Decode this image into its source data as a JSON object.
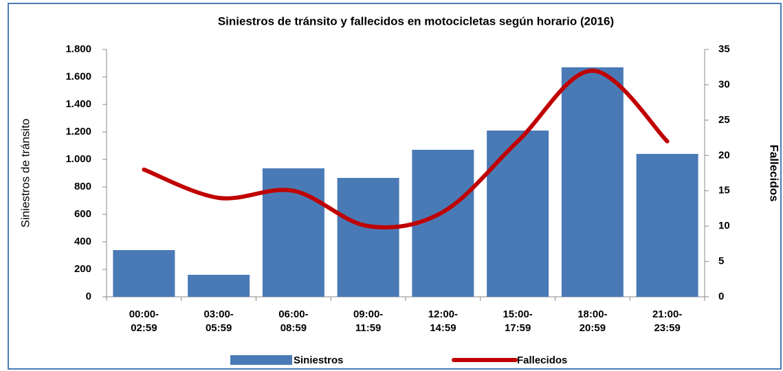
{
  "chart_data": {
    "type": "bar-line",
    "title": "Siniestros de tránsito y fallecidos en motocicletas según horario (2016)",
    "ylabel": "Siniestros de tránsito",
    "y2label": "Fallecidos",
    "categories": [
      "00:00-\n02:59",
      "03:00-\n05:59",
      "06:00-\n08:59",
      "09:00-\n11:59",
      "12:00-\n14:59",
      "15:00-\n17:59",
      "18:00-\n20:59",
      "21:00-\n23:59"
    ],
    "series": [
      {
        "name": "Siniestros",
        "type": "bar",
        "color": "#4a7ab5",
        "values": [
          340,
          160,
          935,
          865,
          1070,
          1210,
          1670,
          1040
        ]
      },
      {
        "name": "Fallecidos",
        "type": "line",
        "axis": "y2",
        "color": "#c00000",
        "values": [
          18,
          14,
          15,
          10,
          12,
          22,
          32,
          22
        ]
      }
    ],
    "ylim": [
      0,
      1800
    ],
    "yticks": [
      0,
      200,
      400,
      600,
      800,
      {
        "value": 1000,
        "label": "1.000"
      },
      {
        "value": 1200,
        "label": "1.200"
      },
      {
        "value": 1400,
        "label": "1.400"
      },
      {
        "value": 1600,
        "label": "1.600"
      },
      {
        "value": 1800,
        "label": "1.800"
      }
    ],
    "y2lim": [
      0,
      35
    ],
    "y2ticks": [
      0,
      5,
      10,
      15,
      20,
      25,
      30,
      35
    ],
    "legend": "bottom"
  }
}
